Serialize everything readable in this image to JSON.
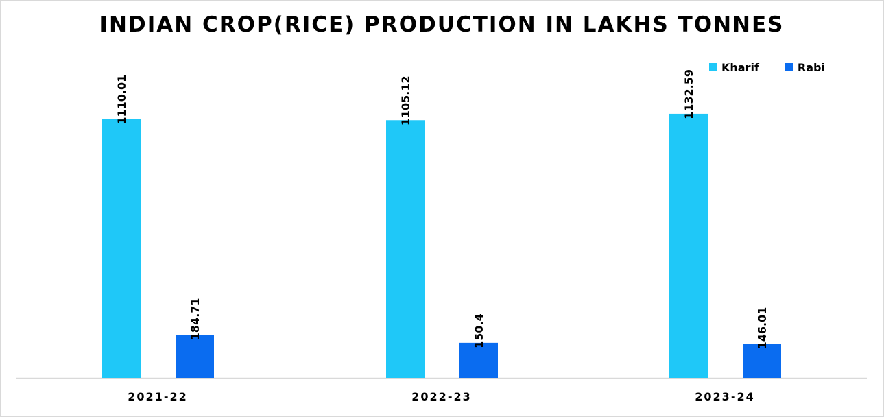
{
  "chart_data": {
    "type": "bar",
    "title": "INDIAN CROP(RICE) PRODUCTION IN LAKHS TONNES",
    "xlabel": "",
    "ylabel": "",
    "categories": [
      "2021-22",
      "2022-23",
      "2023-24"
    ],
    "series": [
      {
        "name": "Kharif",
        "color": "#1FC8F8",
        "values": [
          1110.01,
          1105.12,
          1132.59
        ],
        "labels": [
          "1110.01",
          "1105.12",
          "1132.59"
        ]
      },
      {
        "name": "Rabi",
        "color": "#0A6CF0",
        "values": [
          184.71,
          150.4,
          146.01
        ],
        "labels": [
          "184.71",
          "150.4",
          "146.01"
        ]
      }
    ],
    "ylim": [
      0,
      1200
    ],
    "grid": false,
    "y_axis_visible": false,
    "legend_position": "top-right",
    "data_labels": "rotated-vertical"
  }
}
